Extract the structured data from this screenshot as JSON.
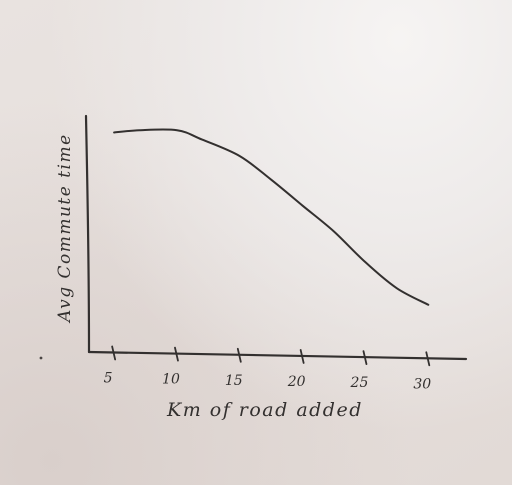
{
  "chart_data": {
    "type": "line",
    "title": "",
    "xlabel": "Km of road added",
    "ylabel": "Avg Commute time",
    "x": [
      5,
      10,
      15,
      20,
      25,
      30
    ],
    "x_tick_labels": [
      "5",
      "10",
      "15",
      "20",
      "25",
      "30"
    ],
    "xlim": [
      3,
      33
    ],
    "y_ticks_shown": false,
    "series": [
      {
        "x": [
          5,
          7,
          10,
          12,
          15,
          17.5,
          20,
          22.5,
          25,
          27.5,
          30
        ],
        "y": [
          0.93,
          0.94,
          0.94,
          0.9,
          0.83,
          0.73,
          0.62,
          0.51,
          0.38,
          0.27,
          0.2
        ]
      }
    ],
    "ylim": [
      0,
      1
    ],
    "grid": false,
    "legend": "none",
    "colors": {
      "ink": "#33302f"
    }
  }
}
